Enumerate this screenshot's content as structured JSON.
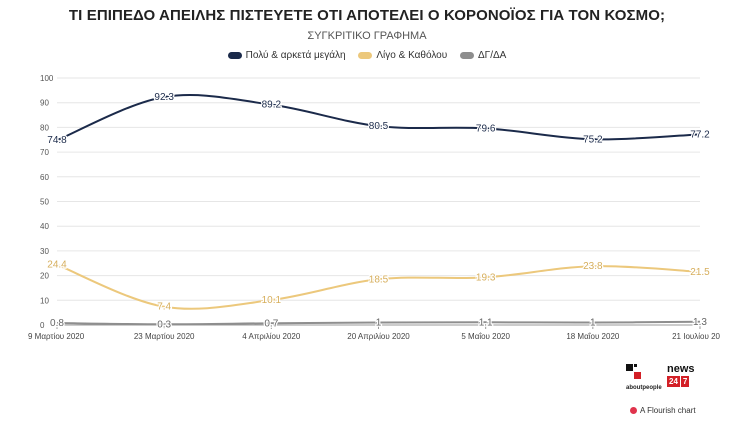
{
  "chart_data": {
    "type": "line",
    "title": "ΤΙ ΕΠΙΠΕΔΟ ΑΠΕΙΛΗΣ ΠΙΣΤΕΥΕΤΕ ΟΤΙ ΑΠΟΤΕΛΕΙ Ο ΚΟΡΟΝΟΪΟΣ ΓΙΑ ΤΟΝ ΚΟΣΜΟ;",
    "subtitle": "ΣΥΓΚΡΙΤΙΚΟ ΓΡΑΦΗΜΑ",
    "categories": [
      "9 Μαρτίου 2020",
      "23 Μαρτίου 2020",
      "4 Απριλίου 2020",
      "20 Απριλίου 2020",
      "5 Μαΐου 2020",
      "18 Μαΐου 2020",
      "21 Ιουλίου 20"
    ],
    "ylim": [
      0,
      100
    ],
    "yticks": [
      0,
      10,
      20,
      30,
      40,
      50,
      60,
      70,
      80,
      90,
      100
    ],
    "grid": true,
    "legend_position": "top",
    "series": [
      {
        "name": "Πολύ & αρκετά μεγάλη",
        "color": "#1b2a4a",
        "values": [
          74.8,
          92.3,
          89.2,
          80.5,
          79.6,
          75.2,
          77.2
        ],
        "labels": [
          "74.8",
          "92.3",
          "89.2",
          "80.5",
          "79.6",
          "75.2",
          "77.2"
        ]
      },
      {
        "name": "Λίγο & Καθόλου",
        "color": "#ecc87c",
        "values": [
          24.4,
          7.4,
          10.1,
          18.5,
          19.3,
          23.8,
          21.5
        ],
        "labels": [
          "24.4",
          "7.4",
          "10.1",
          "18.5",
          "19.3",
          "23.8",
          "21.5"
        ]
      },
      {
        "name": "ΔΓ/ΔΑ",
        "color": "#8e8e8e",
        "values": [
          0.8,
          0.3,
          0.7,
          1,
          1.1,
          1,
          1.3
        ],
        "labels": [
          "0.8",
          "0.3",
          "0.7",
          "1",
          "1.1",
          "1",
          "1.3"
        ]
      }
    ]
  },
  "branding": {
    "aboutpeople": "aboutpeople",
    "news_word": "news",
    "news_num1": "24",
    "news_num2": "7",
    "flourish": "A Flourish chart"
  }
}
